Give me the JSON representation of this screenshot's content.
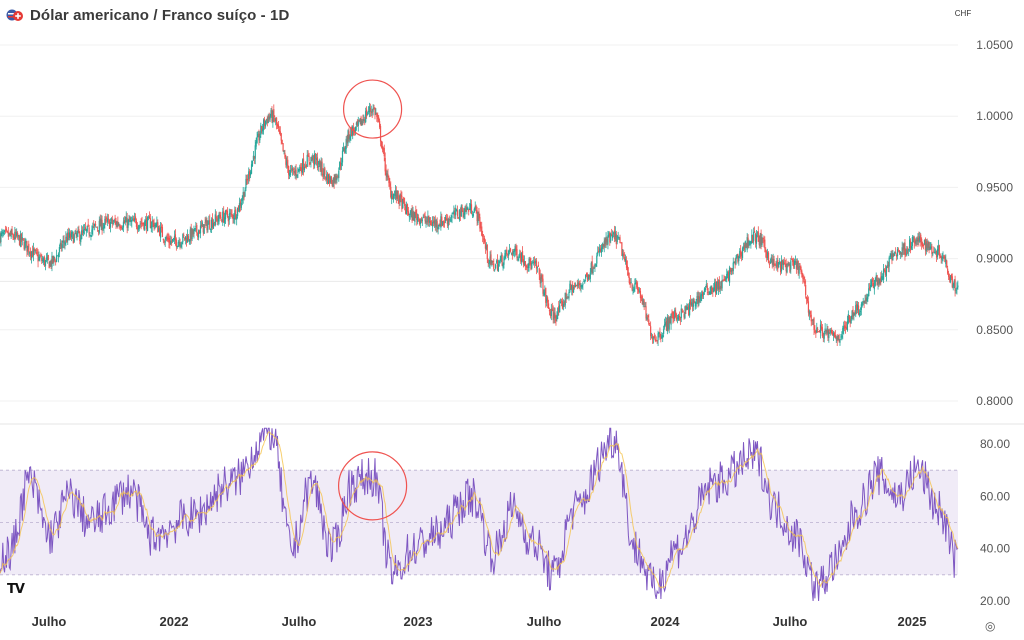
{
  "header": {
    "title": "Dólar americano / Franco suíço - 1D",
    "currency_label": "CHF",
    "logo_icon": "flag-pair-icon"
  },
  "footer": {
    "brand_logo": "TV",
    "settings_icon": "gear-icon"
  },
  "colors": {
    "up": "#26a69a",
    "down": "#ef5350",
    "rsi_line": "#7e57c2",
    "rsi_ma": "#f5c34b",
    "rsi_band": "#ede7f6",
    "highlight_circle": "#ef5350"
  },
  "chart_data": [
    {
      "type": "candlestick",
      "series_name": "",
      "timeframe": "1D",
      "x_ticks": [
        "Julho",
        "2022",
        "Julho",
        "2023",
        "Julho",
        "2024",
        "Julho",
        "2025"
      ],
      "y_ticks": [
        "1.0500",
        "1.0000",
        "0.9500",
        "0.9000",
        "0.8500",
        "0.8000"
      ],
      "ylim": [
        0.79,
        1.06
      ],
      "key_points": [
        {
          "date": "2021-04",
          "close": 0.916
        },
        {
          "date": "2021-06",
          "close": 0.897
        },
        {
          "date": "2021-07",
          "close": 0.915
        },
        {
          "date": "2021-09",
          "close": 0.925
        },
        {
          "date": "2021-11",
          "close": 0.925
        },
        {
          "date": "2021-12",
          "close": 0.912
        },
        {
          "date": "2022-03",
          "close": 0.93
        },
        {
          "date": "2022-05",
          "close": 1.0
        },
        {
          "date": "2022-06",
          "close": 0.96
        },
        {
          "date": "2022-07",
          "close": 0.97
        },
        {
          "date": "2022-08",
          "close": 0.955
        },
        {
          "date": "2022-09",
          "close": 0.99
        },
        {
          "date": "2022-10",
          "close": 1.005
        },
        {
          "date": "2022-11",
          "close": 0.945
        },
        {
          "date": "2022-12",
          "close": 0.93
        },
        {
          "date": "2023-01",
          "close": 0.925
        },
        {
          "date": "2023-03",
          "close": 0.935
        },
        {
          "date": "2023-04",
          "close": 0.895
        },
        {
          "date": "2023-05",
          "close": 0.905
        },
        {
          "date": "2023-06",
          "close": 0.895
        },
        {
          "date": "2023-07",
          "close": 0.86
        },
        {
          "date": "2023-08",
          "close": 0.88
        },
        {
          "date": "2023-10",
          "close": 0.915
        },
        {
          "date": "2023-11",
          "close": 0.88
        },
        {
          "date": "2023-12",
          "close": 0.845
        },
        {
          "date": "2024-01",
          "close": 0.86
        },
        {
          "date": "2024-03",
          "close": 0.88
        },
        {
          "date": "2024-05",
          "close": 0.915
        },
        {
          "date": "2024-06",
          "close": 0.895
        },
        {
          "date": "2024-07",
          "close": 0.895
        },
        {
          "date": "2024-08",
          "close": 0.85
        },
        {
          "date": "2024-09",
          "close": 0.845
        },
        {
          "date": "2024-10",
          "close": 0.865
        },
        {
          "date": "2024-11",
          "close": 0.885
        },
        {
          "date": "2024-12",
          "close": 0.905
        },
        {
          "date": "2025-01",
          "close": 0.912
        },
        {
          "date": "2025-02",
          "close": 0.905
        },
        {
          "date": "2025-03",
          "close": 0.88
        }
      ],
      "annotations": [
        {
          "shape": "circle",
          "date": "2022-10",
          "value": 1.005
        }
      ]
    },
    {
      "type": "line",
      "series_name": "",
      "y_ticks": [
        "80.00",
        "60.00",
        "40.00",
        "20.00"
      ],
      "ylim": [
        18,
        88
      ],
      "band": [
        30,
        70
      ],
      "midline": 50,
      "key_points": [
        {
          "date": "2021-04",
          "value": 38
        },
        {
          "date": "2021-05",
          "value": 66
        },
        {
          "date": "2021-06",
          "value": 45
        },
        {
          "date": "2021-07",
          "value": 60
        },
        {
          "date": "2021-08",
          "value": 50
        },
        {
          "date": "2021-10",
          "value": 62
        },
        {
          "date": "2021-11",
          "value": 45
        },
        {
          "date": "2022-01",
          "value": 52
        },
        {
          "date": "2022-03",
          "value": 65
        },
        {
          "date": "2022-05",
          "value": 85
        },
        {
          "date": "2022-06",
          "value": 40
        },
        {
          "date": "2022-07",
          "value": 65
        },
        {
          "date": "2022-08",
          "value": 40
        },
        {
          "date": "2022-09",
          "value": 65
        },
        {
          "date": "2022-10",
          "value": 68
        },
        {
          "date": "2022-11",
          "value": 30
        },
        {
          "date": "2022-12",
          "value": 40
        },
        {
          "date": "2023-01",
          "value": 45
        },
        {
          "date": "2023-03",
          "value": 60
        },
        {
          "date": "2023-04",
          "value": 38
        },
        {
          "date": "2023-05",
          "value": 55
        },
        {
          "date": "2023-06",
          "value": 42
        },
        {
          "date": "2023-07",
          "value": 30
        },
        {
          "date": "2023-08",
          "value": 55
        },
        {
          "date": "2023-10",
          "value": 82
        },
        {
          "date": "2023-11",
          "value": 40
        },
        {
          "date": "2023-12",
          "value": 25
        },
        {
          "date": "2024-01",
          "value": 40
        },
        {
          "date": "2024-03",
          "value": 65
        },
        {
          "date": "2024-05",
          "value": 75
        },
        {
          "date": "2024-06",
          "value": 55
        },
        {
          "date": "2024-07",
          "value": 45
        },
        {
          "date": "2024-08",
          "value": 25
        },
        {
          "date": "2024-09",
          "value": 35
        },
        {
          "date": "2024-10",
          "value": 55
        },
        {
          "date": "2024-11",
          "value": 68
        },
        {
          "date": "2024-12",
          "value": 60
        },
        {
          "date": "2025-01",
          "value": 70
        },
        {
          "date": "2025-02",
          "value": 55
        },
        {
          "date": "2025-03",
          "value": 35
        }
      ],
      "annotations": [
        {
          "shape": "circle",
          "date": "2022-10",
          "value": 64
        }
      ]
    }
  ]
}
